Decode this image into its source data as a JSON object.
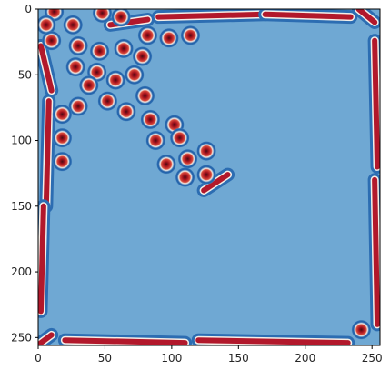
{
  "chart_data": {
    "type": "heatmap",
    "title": "",
    "xlabel": "",
    "ylabel": "",
    "colormap": "RdBu_r",
    "background_color": "#6fa8d3",
    "x_range": [
      0,
      256
    ],
    "y_range": [
      0,
      256
    ],
    "y_inverted": true,
    "x_ticks": [
      0,
      50,
      100,
      150,
      200,
      250
    ],
    "y_ticks": [
      0,
      50,
      100,
      150,
      200,
      250
    ],
    "grid": false,
    "spots": [
      [
        12,
        2
      ],
      [
        48,
        3
      ],
      [
        6,
        12
      ],
      [
        26,
        12
      ],
      [
        10,
        24
      ],
      [
        30,
        28
      ],
      [
        82,
        20
      ],
      [
        98,
        22
      ],
      [
        114,
        20
      ],
      [
        46,
        32
      ],
      [
        28,
        44
      ],
      [
        64,
        30
      ],
      [
        78,
        36
      ],
      [
        44,
        48
      ],
      [
        58,
        54
      ],
      [
        72,
        50
      ],
      [
        38,
        58
      ],
      [
        30,
        74
      ],
      [
        52,
        70
      ],
      [
        66,
        78
      ],
      [
        80,
        66
      ],
      [
        18,
        80
      ],
      [
        84,
        84
      ],
      [
        102,
        88
      ],
      [
        18,
        98
      ],
      [
        88,
        100
      ],
      [
        106,
        98
      ],
      [
        126,
        108
      ],
      [
        18,
        116
      ],
      [
        96,
        118
      ],
      [
        112,
        114
      ],
      [
        110,
        128
      ],
      [
        126,
        126
      ],
      [
        242,
        244
      ],
      [
        62,
        6
      ]
    ],
    "stripes": [
      {
        "from": [
          2,
          28
        ],
        "to": [
          10,
          62
        ]
      },
      {
        "from": [
          8,
          70
        ],
        "to": [
          6,
          150
        ]
      },
      {
        "from": [
          4,
          150
        ],
        "to": [
          2,
          230
        ]
      },
      {
        "from": [
          54,
          12
        ],
        "to": [
          82,
          8
        ]
      },
      {
        "from": [
          90,
          6
        ],
        "to": [
          170,
          4
        ]
      },
      {
        "from": [
          170,
          4
        ],
        "to": [
          234,
          6
        ]
      },
      {
        "from": [
          240,
          0
        ],
        "to": [
          252,
          10
        ]
      },
      {
        "from": [
          252,
          24
        ],
        "to": [
          254,
          120
        ]
      },
      {
        "from": [
          252,
          130
        ],
        "to": [
          254,
          240
        ]
      },
      {
        "from": [
          10,
          248
        ],
        "to": [
          2,
          254
        ]
      },
      {
        "from": [
          20,
          252
        ],
        "to": [
          110,
          254
        ]
      },
      {
        "from": [
          120,
          252
        ],
        "to": [
          232,
          254
        ]
      },
      {
        "from": [
          124,
          138
        ],
        "to": [
          142,
          126
        ]
      }
    ]
  }
}
